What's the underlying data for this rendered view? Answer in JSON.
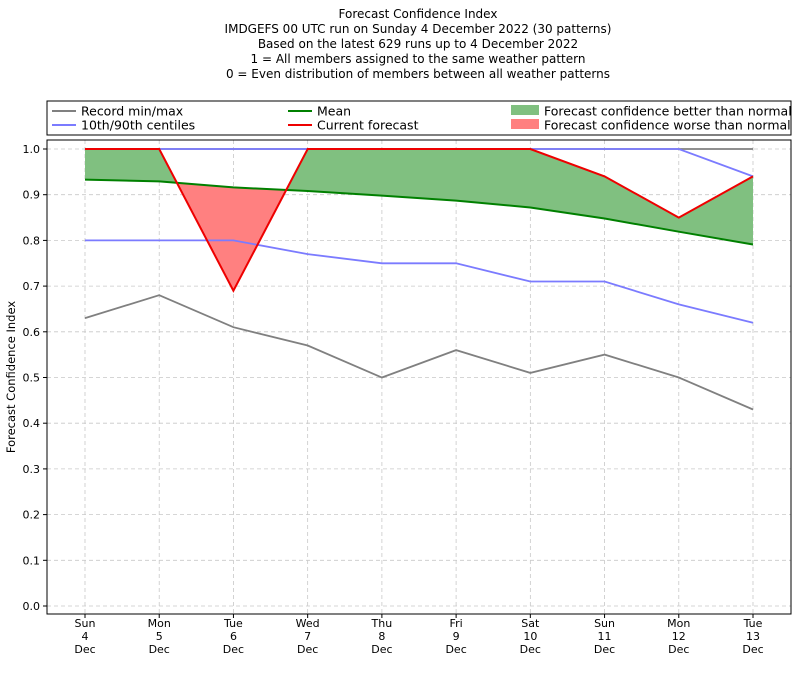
{
  "chart_data": {
    "type": "line",
    "title_lines": [
      "Forecast Confidence Index",
      "IMDGEFS 00 UTC run on Sunday 4 December 2022 (30 patterns)",
      "Based on the latest 629 runs up to 4 December 2022",
      "1 = All members assigned to the same weather pattern",
      "0 = Even distribution of members between all weather patterns"
    ],
    "ylabel": "Forecast Confidence Index",
    "ylim": [
      0,
      1
    ],
    "yticks": [
      "0.0",
      "0.1",
      "0.2",
      "0.3",
      "0.4",
      "0.5",
      "0.6",
      "0.7",
      "0.8",
      "0.9",
      "1.0"
    ],
    "grid": true,
    "legend_position": "top",
    "x_labels": [
      [
        "Sun",
        "4",
        "Dec"
      ],
      [
        "Mon",
        "5",
        "Dec"
      ],
      [
        "Tue",
        "6",
        "Dec"
      ],
      [
        "Wed",
        "7",
        "Dec"
      ],
      [
        "Thu",
        "8",
        "Dec"
      ],
      [
        "Fri",
        "9",
        "Dec"
      ],
      [
        "Sat",
        "10",
        "Dec"
      ],
      [
        "Sun",
        "11",
        "Dec"
      ],
      [
        "Mon",
        "12",
        "Dec"
      ],
      [
        "Tue",
        "13",
        "Dec"
      ]
    ],
    "series": [
      {
        "name": "Record min/max",
        "color": "#808080",
        "role": "record_max",
        "values": [
          1.0,
          1.0,
          1.0,
          1.0,
          1.0,
          1.0,
          1.0,
          1.0,
          1.0,
          1.0
        ]
      },
      {
        "name": "Record min/max",
        "color": "#808080",
        "role": "record_min",
        "values": [
          0.63,
          0.68,
          0.61,
          0.57,
          0.5,
          0.56,
          0.51,
          0.55,
          0.5,
          0.43
        ]
      },
      {
        "name": "10th/90th centiles",
        "color": "#7b7bff",
        "role": "p90",
        "values": [
          1.0,
          1.0,
          1.0,
          1.0,
          1.0,
          1.0,
          1.0,
          1.0,
          1.0,
          0.94
        ]
      },
      {
        "name": "10th/90th centiles",
        "color": "#7b7bff",
        "role": "p10",
        "values": [
          0.8,
          0.8,
          0.8,
          0.77,
          0.75,
          0.75,
          0.71,
          0.71,
          0.66,
          0.62
        ]
      },
      {
        "name": "Mean",
        "color": "#008000",
        "role": "mean",
        "values": [
          0.933,
          0.929,
          0.916,
          0.908,
          0.898,
          0.887,
          0.872,
          0.848,
          0.819,
          0.791
        ]
      },
      {
        "name": "Current forecast",
        "color": "#ee0000",
        "role": "current",
        "values": [
          1.0,
          1.0,
          0.69,
          1.0,
          1.0,
          1.0,
          1.0,
          0.94,
          0.85,
          0.94
        ]
      }
    ],
    "fill_better": {
      "name": "Forecast confidence better than normal",
      "color": "#80c080"
    },
    "fill_worse": {
      "name": "Forecast confidence worse than normal",
      "color": "#ff8080"
    },
    "legend": [
      {
        "label": "Record min/max",
        "kind": "line",
        "color": "#808080"
      },
      {
        "label": "10th/90th centiles",
        "kind": "line",
        "color": "#7b7bff"
      },
      {
        "label": "Mean",
        "kind": "line",
        "color": "#008000"
      },
      {
        "label": "Current forecast",
        "kind": "line",
        "color": "#ee0000"
      },
      {
        "label": "Forecast confidence better than normal",
        "kind": "patch",
        "color": "#80c080"
      },
      {
        "label": "Forecast confidence worse than normal",
        "kind": "patch",
        "color": "#ff8080"
      }
    ]
  }
}
